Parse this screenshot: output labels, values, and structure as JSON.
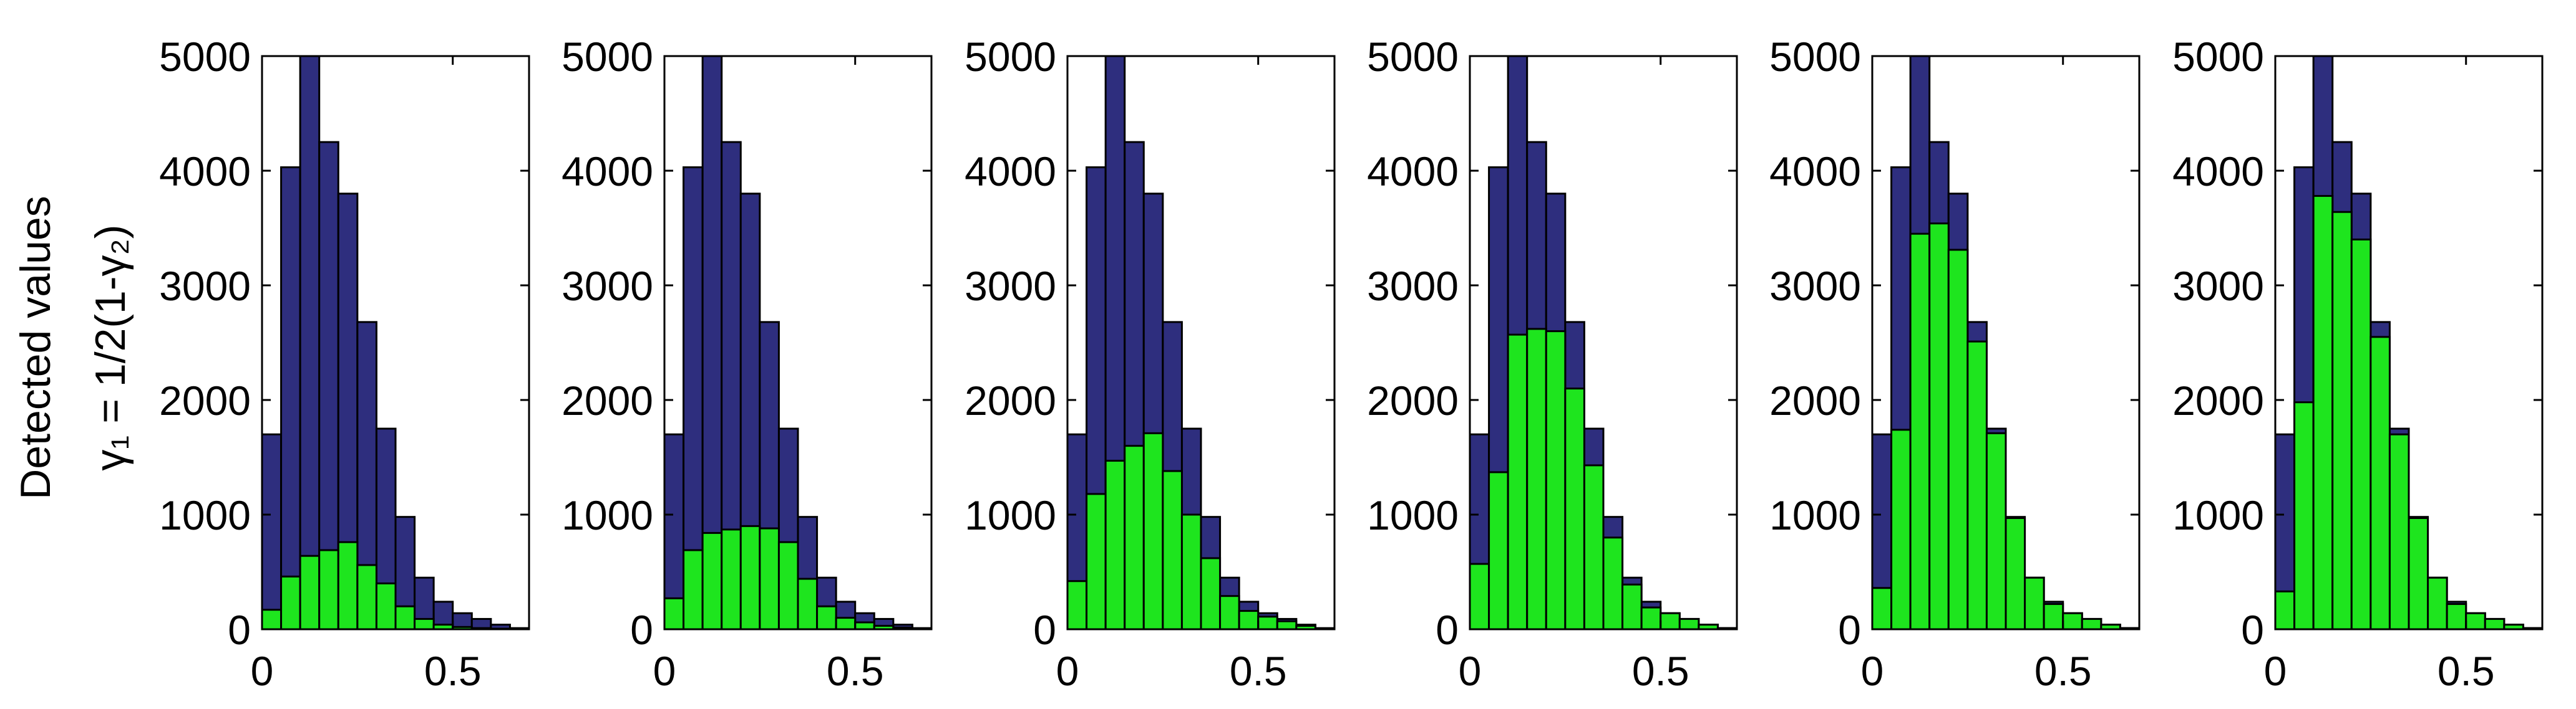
{
  "ylabel_lines": [
    "Detected values",
    "γ₁ = 1/2(1-γ₂)"
  ],
  "colors": {
    "total": "#2e2e7e",
    "detected": "#1ee51e",
    "outline": "#000000"
  },
  "chart_data": [
    {
      "type": "bar",
      "x": [
        0.025,
        0.075,
        0.125,
        0.175,
        0.225,
        0.275,
        0.325,
        0.375,
        0.425,
        0.475,
        0.525,
        0.575,
        0.625,
        0.675
      ],
      "series": [
        {
          "values": [
            1700,
            4030,
            5030,
            4250,
            3800,
            2680,
            1750,
            980,
            450,
            240,
            140,
            90,
            40,
            10
          ]
        },
        {
          "values": [
            170,
            460,
            640,
            690,
            760,
            560,
            400,
            200,
            90,
            40,
            20,
            10,
            5,
            2
          ]
        }
      ],
      "xlim": [
        0,
        0.7
      ],
      "ylim": [
        0,
        5000
      ],
      "xticks": [
        "0",
        "0.5"
      ],
      "yticks": [
        "0",
        "1000",
        "2000",
        "3000",
        "4000",
        "5000"
      ]
    },
    {
      "type": "bar",
      "x": [
        0.025,
        0.075,
        0.125,
        0.175,
        0.225,
        0.275,
        0.325,
        0.375,
        0.425,
        0.475,
        0.525,
        0.575,
        0.625,
        0.675
      ],
      "series": [
        {
          "values": [
            1700,
            4030,
            5030,
            4250,
            3800,
            2680,
            1750,
            980,
            450,
            240,
            140,
            90,
            40,
            10
          ]
        },
        {
          "values": [
            270,
            690,
            840,
            870,
            900,
            880,
            760,
            440,
            200,
            100,
            60,
            30,
            15,
            5
          ]
        }
      ],
      "xlim": [
        0,
        0.7
      ],
      "ylim": [
        0,
        5000
      ],
      "xticks": [
        "0",
        "0.5"
      ],
      "yticks": [
        "0",
        "1000",
        "2000",
        "3000",
        "4000",
        "5000"
      ]
    },
    {
      "type": "bar",
      "x": [
        0.025,
        0.075,
        0.125,
        0.175,
        0.225,
        0.275,
        0.325,
        0.375,
        0.425,
        0.475,
        0.525,
        0.575,
        0.625,
        0.675
      ],
      "series": [
        {
          "values": [
            1700,
            4030,
            5030,
            4250,
            3800,
            2680,
            1750,
            980,
            450,
            240,
            140,
            90,
            40,
            10
          ]
        },
        {
          "values": [
            420,
            1180,
            1470,
            1600,
            1710,
            1380,
            1000,
            620,
            290,
            160,
            110,
            70,
            30,
            8
          ]
        }
      ],
      "xlim": [
        0,
        0.7
      ],
      "ylim": [
        0,
        5000
      ],
      "xticks": [
        "0",
        "0.5"
      ],
      "yticks": [
        "0",
        "1000",
        "2000",
        "3000",
        "4000",
        "5000"
      ]
    },
    {
      "type": "bar",
      "x": [
        0.025,
        0.075,
        0.125,
        0.175,
        0.225,
        0.275,
        0.325,
        0.375,
        0.425,
        0.475,
        0.525,
        0.575,
        0.625,
        0.675
      ],
      "series": [
        {
          "values": [
            1700,
            4030,
            5030,
            4250,
            3800,
            2680,
            1750,
            980,
            450,
            240,
            140,
            90,
            40,
            10
          ]
        },
        {
          "values": [
            570,
            1370,
            2570,
            2620,
            2600,
            2100,
            1430,
            800,
            390,
            190,
            140,
            90,
            40,
            10
          ]
        }
      ],
      "xlim": [
        0,
        0.7
      ],
      "ylim": [
        0,
        5000
      ],
      "xticks": [
        "0",
        "0.5"
      ],
      "yticks": [
        "0",
        "1000",
        "2000",
        "3000",
        "4000",
        "5000"
      ]
    },
    {
      "type": "bar",
      "x": [
        0.025,
        0.075,
        0.125,
        0.175,
        0.225,
        0.275,
        0.325,
        0.375,
        0.425,
        0.475,
        0.525,
        0.575,
        0.625,
        0.675
      ],
      "series": [
        {
          "values": [
            1700,
            4030,
            5030,
            4250,
            3800,
            2680,
            1750,
            980,
            450,
            240,
            140,
            90,
            40,
            10
          ]
        },
        {
          "values": [
            360,
            1740,
            3450,
            3540,
            3310,
            2510,
            1710,
            970,
            450,
            220,
            140,
            90,
            40,
            10
          ]
        }
      ],
      "xlim": [
        0,
        0.7
      ],
      "ylim": [
        0,
        5000
      ],
      "xticks": [
        "0",
        "0.5"
      ],
      "yticks": [
        "0",
        "1000",
        "2000",
        "3000",
        "4000",
        "5000"
      ]
    },
    {
      "type": "bar",
      "x": [
        0.025,
        0.075,
        0.125,
        0.175,
        0.225,
        0.275,
        0.325,
        0.375,
        0.425,
        0.475,
        0.525,
        0.575,
        0.625,
        0.675
      ],
      "series": [
        {
          "values": [
            1700,
            4030,
            5030,
            4250,
            3800,
            2680,
            1750,
            980,
            450,
            240,
            140,
            90,
            40,
            10
          ]
        },
        {
          "values": [
            330,
            1980,
            3780,
            3640,
            3400,
            2550,
            1700,
            970,
            450,
            220,
            140,
            90,
            40,
            10
          ]
        }
      ],
      "xlim": [
        0,
        0.7
      ],
      "ylim": [
        0,
        5000
      ],
      "xticks": [
        "0",
        "0.5"
      ],
      "yticks": [
        "0",
        "1000",
        "2000",
        "3000",
        "4000",
        "5000"
      ]
    }
  ]
}
